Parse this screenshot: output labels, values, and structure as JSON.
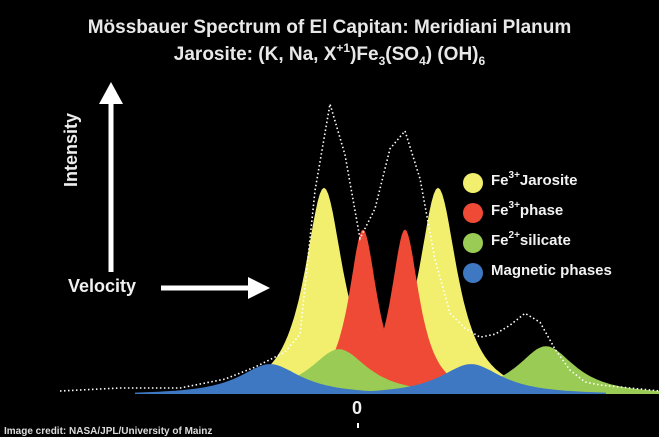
{
  "title": {
    "line1": "Mössbauer Spectrum of El Capitan:  Meridiani Planum",
    "line2_prefix": "Jarosite: (K, Na, X",
    "line2_sup1": "+1",
    "line2_mid1": ")Fe",
    "line2_sub1": "3",
    "line2_mid2": "(SO",
    "line2_sub2": "4",
    "line2_mid3": ")  (OH)",
    "line2_sub3": "6"
  },
  "axes": {
    "ylabel": "Intensity",
    "xlabel": "Velocity",
    "zero_tick": "0"
  },
  "legend": [
    {
      "pre": "Fe",
      "sup": "3+",
      "post": "Jarosite",
      "color": "#f2ef6e"
    },
    {
      "pre": "Fe",
      "sup": "3+",
      "post": "phase",
      "color": "#ef4a35"
    },
    {
      "pre": "Fe",
      "sup": "2+",
      "post": "silicate",
      "color": "#9acb54"
    },
    {
      "pre": "",
      "sup": "",
      "post": "Magnetic phases",
      "color": "#3f78c2"
    }
  ],
  "credit": "Image credit: NASA/JPL/University of Mainz",
  "chart_data": {
    "type": "area",
    "xlabel": "Velocity",
    "ylabel": "Intensity",
    "xlim": [
      -1,
      1
    ],
    "ylim": [
      0,
      1
    ],
    "components": [
      {
        "name": "Fe3+ Jarosite",
        "color": "#f2ef6e",
        "peaks": [
          {
            "x": -0.12,
            "height": 0.69,
            "width": 0.095
          },
          {
            "x": 0.26,
            "height": 0.69,
            "width": 0.095
          }
        ]
      },
      {
        "name": "Fe3+ phase",
        "color": "#ef4a35",
        "peaks": [
          {
            "x": 0.01,
            "height": 0.55,
            "width": 0.07
          },
          {
            "x": 0.15,
            "height": 0.55,
            "width": 0.07
          }
        ]
      },
      {
        "name": "Fe2+ silicate",
        "color": "#9acb54",
        "peaks": [
          {
            "x": -0.07,
            "height": 0.15,
            "width": 0.14
          },
          {
            "x": 0.62,
            "height": 0.16,
            "width": 0.14
          }
        ]
      },
      {
        "name": "Magnetic phases",
        "color": "#3f78c2",
        "peaks": [
          {
            "x": -0.3,
            "height": 0.1,
            "width": 0.15
          },
          {
            "x": 0.37,
            "height": 0.1,
            "width": 0.15
          }
        ]
      }
    ],
    "measured": {
      "style": "dotted",
      "color": "#ffffff",
      "x": [
        -1.0,
        -0.8,
        -0.6,
        -0.45,
        -0.35,
        -0.25,
        -0.2,
        -0.15,
        -0.1,
        -0.05,
        0.0,
        0.05,
        0.1,
        0.15,
        0.2,
        0.25,
        0.3,
        0.35,
        0.4,
        0.45,
        0.5,
        0.55,
        0.6,
        0.65,
        0.7,
        0.75,
        0.8,
        0.9,
        1.0
      ],
      "y": [
        0.01,
        0.02,
        0.02,
        0.05,
        0.09,
        0.14,
        0.2,
        0.68,
        0.97,
        0.8,
        0.52,
        0.62,
        0.82,
        0.88,
        0.72,
        0.45,
        0.27,
        0.22,
        0.19,
        0.2,
        0.23,
        0.27,
        0.24,
        0.15,
        0.08,
        0.04,
        0.03,
        0.02,
        0.01
      ]
    }
  }
}
